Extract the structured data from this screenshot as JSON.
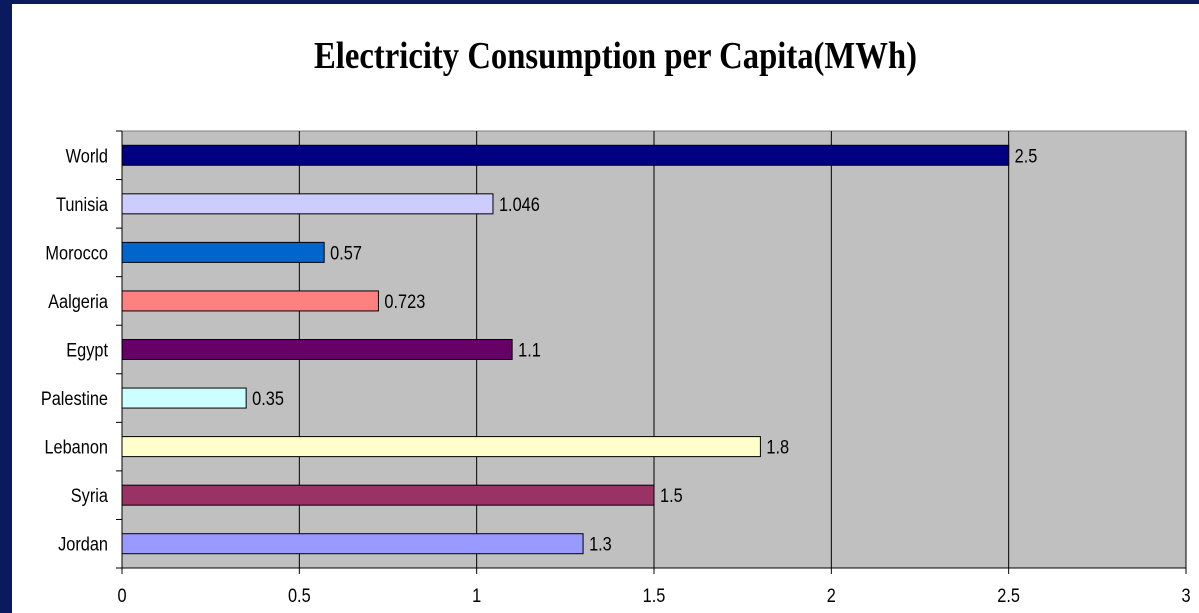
{
  "chart_data": {
    "type": "bar",
    "orientation": "horizontal",
    "title": "Electricity Consumption per Capita(MWh)",
    "xlabel": "",
    "ylabel": "",
    "categories": [
      "World",
      "Tunisia",
      "Morocco",
      "Aalgeria",
      "Egypt",
      "Palestine",
      "Lebanon",
      "Syria",
      "Jordan"
    ],
    "values": [
      2.5,
      1.046,
      0.57,
      0.723,
      1.1,
      0.35,
      1.8,
      1.5,
      1.3
    ],
    "data_labels": [
      "2.5",
      "1.046",
      "0.57",
      "0.723",
      "1.1",
      "0.35",
      "1.8",
      "1.5",
      "1.3"
    ],
    "bar_colors": [
      "#000080",
      "#ccccff",
      "#0066cc",
      "#ff8080",
      "#660066",
      "#ccffff",
      "#ffffcc",
      "#993366",
      "#9999ff"
    ],
    "xlim": [
      0,
      3
    ],
    "xticks": [
      0,
      0.5,
      1,
      1.5,
      2,
      2.5,
      3
    ],
    "xtick_labels": [
      "0",
      "0.5",
      "1",
      "1.5",
      "2",
      "2.5",
      "3"
    ],
    "grid": "vertical",
    "legend": "none",
    "plot_background": "#c0c0c0",
    "page_background": "#0b1a5e"
  }
}
